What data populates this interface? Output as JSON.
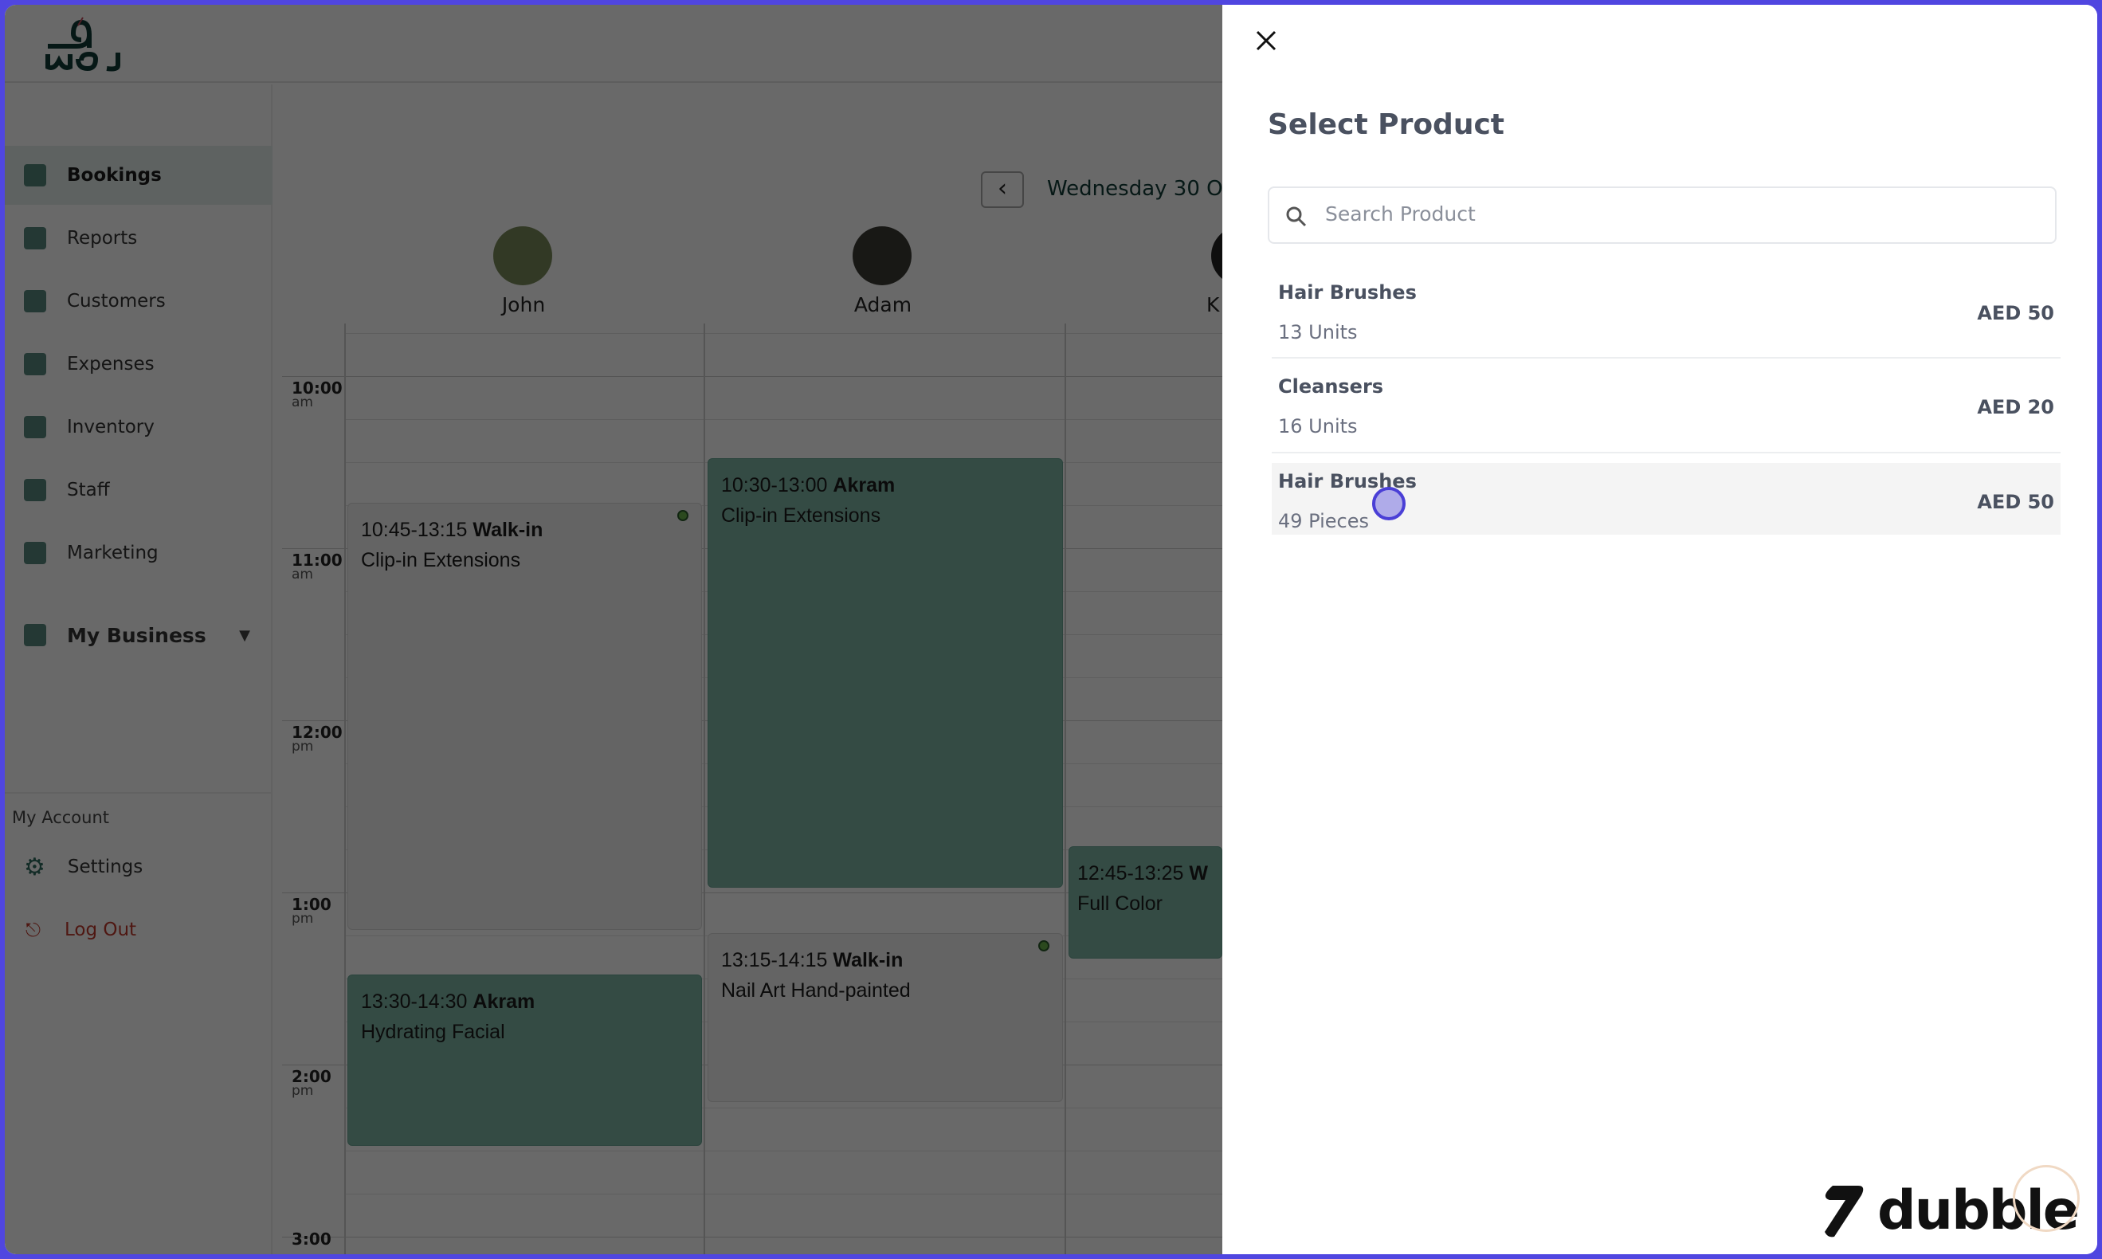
{
  "app": {
    "logo_text": "waj"
  },
  "sidebar": {
    "items": [
      {
        "label": "Bookings",
        "icon": "calendar-check-icon",
        "active": true
      },
      {
        "label": "Reports",
        "icon": "bar-chart-icon"
      },
      {
        "label": "Customers",
        "icon": "users-icon"
      },
      {
        "label": "Expenses",
        "icon": "receipt-icon"
      },
      {
        "label": "Inventory",
        "icon": "boxes-icon"
      },
      {
        "label": "Staff",
        "icon": "staff-icon"
      },
      {
        "label": "Marketing",
        "icon": "megaphone-icon"
      },
      {
        "label": "My Business",
        "icon": "store-icon"
      }
    ],
    "account_heading": "My Account",
    "settings": "Settings",
    "logout": "Log Out"
  },
  "calendar": {
    "date": "Wednesday 30 O",
    "staff": [
      "John",
      "Adam",
      "K"
    ],
    "times": [
      {
        "t": "10:00",
        "p": "am"
      },
      {
        "t": "11:00",
        "p": "am"
      },
      {
        "t": "12:00",
        "p": "pm"
      },
      {
        "t": "1:00",
        "p": "pm"
      },
      {
        "t": "2:00",
        "p": "pm"
      },
      {
        "t": "3:00",
        "p": ""
      }
    ],
    "events": [
      {
        "time": "10:45-13:15",
        "client": "Walk-in",
        "service": "Clip-in Extensions"
      },
      {
        "time": "13:30-14:30",
        "client": "Akram",
        "service": "Hydrating Facial"
      },
      {
        "time": "10:30-13:00",
        "client": "Akram",
        "service": "Clip-in Extensions"
      },
      {
        "time": "13:15-14:15",
        "client": "Walk-in",
        "service": "Nail Art Hand-painted"
      },
      {
        "time": "12:45-13:25",
        "client": "W",
        "service": "Full Color"
      }
    ]
  },
  "panel": {
    "title": "Select Product",
    "search_placeholder": "Search Product",
    "products": [
      {
        "name": "Hair Brushes",
        "qty": "13 Units",
        "price": "AED 50"
      },
      {
        "name": "Cleansers",
        "qty": "16 Units",
        "price": "AED 20"
      },
      {
        "name": "Hair Brushes",
        "qty": "49 Pieces",
        "price": "AED 50"
      }
    ]
  },
  "watermark": "dubble",
  "colors": {
    "accent": "#2f6b5e",
    "border": "#5046e0",
    "event_teal": "#7fb7a7"
  }
}
